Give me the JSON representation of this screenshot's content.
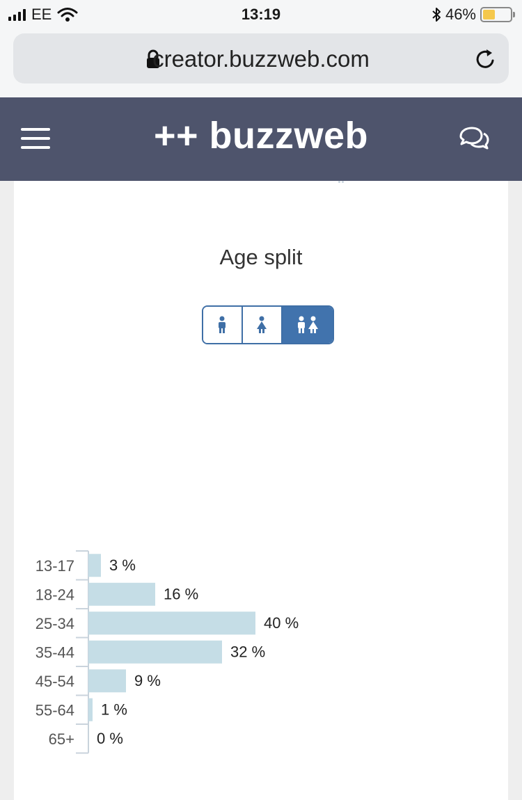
{
  "status_bar": {
    "carrier": "EE",
    "time": "13:19",
    "battery_percent": "46%",
    "battery_level": 0.46,
    "battery_color": "#f5c84c"
  },
  "browser": {
    "url": "creator.buzzweb.com"
  },
  "navbar": {
    "brand": "++ buzzweb",
    "background": "#4e546c"
  },
  "toggle": {
    "options": [
      "male-icon",
      "female-icon",
      "all-genders-icon"
    ],
    "selected": "all-genders-icon"
  },
  "chart_data": {
    "type": "bar",
    "orientation": "horizontal",
    "title": "Age split",
    "categories": [
      "13-17",
      "18-24",
      "25-34",
      "35-44",
      "45-54",
      "55-64",
      "65+"
    ],
    "values": [
      3,
      16,
      40,
      32,
      9,
      1,
      0
    ],
    "value_labels": [
      "3 %",
      "16 %",
      "40 %",
      "32 %",
      "9 %",
      "1 %",
      "0 %"
    ],
    "unit": "%",
    "bar_color": "#c5dde6",
    "xlim": [
      0,
      100
    ],
    "grid": false,
    "legend": "none"
  }
}
